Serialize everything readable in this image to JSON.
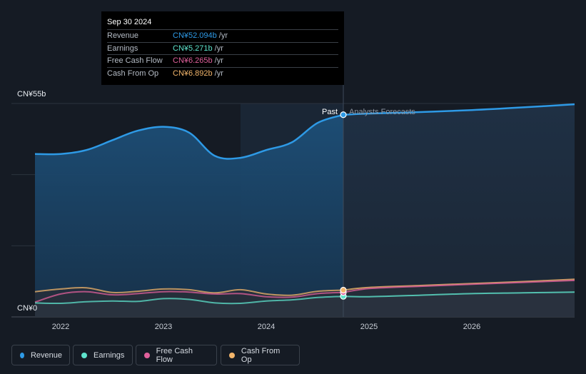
{
  "chart_data": {
    "type": "area",
    "y_axis": {
      "top_label": "CN¥55b",
      "bottom_label": "CN¥0",
      "ylim": [
        0,
        55
      ]
    },
    "x_ticks": [
      "2022",
      "2023",
      "2024",
      "2025",
      "2026"
    ],
    "past_label": "Past",
    "forecast_label": "Analysts Forecasts",
    "tooltip": {
      "date": "Sep 30 2024",
      "rows": [
        {
          "name": "Revenue",
          "value": "CN¥52.094b",
          "unit": "/yr",
          "color": "#2e9ae6"
        },
        {
          "name": "Earnings",
          "value": "CN¥5.271b",
          "unit": "/yr",
          "color": "#5ee3cc"
        },
        {
          "name": "Free Cash Flow",
          "value": "CN¥6.265b",
          "unit": "/yr",
          "color": "#e0609b"
        },
        {
          "name": "Cash From Op",
          "value": "CN¥6.892b",
          "unit": "/yr",
          "color": "#f2b56b"
        }
      ]
    },
    "series": [
      {
        "name": "Revenue",
        "color": "#2e9ae6",
        "x": [
          2021.75,
          2022.0,
          2022.25,
          2022.5,
          2022.75,
          2023.0,
          2023.25,
          2023.5,
          2023.75,
          2024.0,
          2024.25,
          2024.5,
          2024.75,
          2025.0,
          2025.5,
          2026.0,
          2026.5,
          2027.0
        ],
        "values": [
          42.0,
          42.0,
          43.0,
          45.5,
          48.0,
          49.0,
          47.5,
          41.5,
          41.0,
          43.0,
          45.0,
          50.0,
          52.1,
          52.4,
          52.8,
          53.3,
          54.0,
          54.8
        ]
      },
      {
        "name": "Earnings",
        "color": "#5ee3cc",
        "x": [
          2021.75,
          2022.0,
          2022.25,
          2022.5,
          2022.75,
          2023.0,
          2023.25,
          2023.5,
          2023.75,
          2024.0,
          2024.25,
          2024.5,
          2024.75,
          2025.0,
          2025.5,
          2026.0,
          2026.5,
          2027.0
        ],
        "values": [
          3.6,
          3.5,
          3.9,
          4.1,
          4.0,
          4.7,
          4.5,
          3.6,
          3.5,
          4.1,
          4.4,
          5.0,
          5.3,
          5.2,
          5.6,
          6.0,
          6.2,
          6.4
        ]
      },
      {
        "name": "Free Cash Flow",
        "color": "#e0609b",
        "x": [
          2021.75,
          2022.0,
          2022.25,
          2022.5,
          2022.75,
          2023.0,
          2023.25,
          2023.5,
          2023.75,
          2024.0,
          2024.25,
          2024.5,
          2024.75,
          2025.0,
          2025.5,
          2026.0,
          2026.5,
          2027.0
        ],
        "values": [
          3.8,
          5.9,
          6.5,
          5.7,
          6.0,
          6.5,
          6.4,
          5.9,
          6.0,
          5.2,
          5.1,
          6.0,
          6.3,
          7.3,
          7.9,
          8.4,
          8.9,
          9.4
        ]
      },
      {
        "name": "Cash From Op",
        "color": "#f2b56b",
        "x": [
          2021.75,
          2022.0,
          2022.25,
          2022.5,
          2022.75,
          2023.0,
          2023.25,
          2023.5,
          2023.75,
          2024.0,
          2024.25,
          2024.5,
          2024.75,
          2025.0,
          2025.5,
          2026.0,
          2026.5,
          2027.0
        ],
        "values": [
          6.5,
          7.2,
          7.5,
          6.3,
          6.6,
          7.2,
          7.0,
          6.2,
          7.0,
          5.9,
          5.6,
          6.6,
          6.9,
          7.6,
          8.1,
          8.6,
          9.1,
          9.7
        ]
      }
    ],
    "legend_placement": "bottom",
    "grid": true
  }
}
